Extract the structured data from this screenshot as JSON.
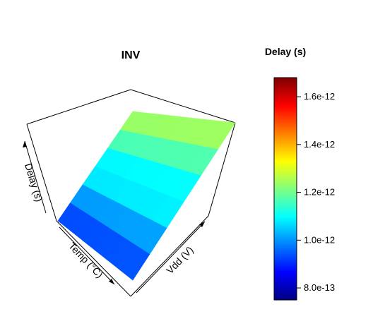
{
  "chart_data": {
    "type": "surface3d",
    "title": "INV",
    "xlabel": "Temp (°C)",
    "ylabel": "Vdd (V)",
    "zlabel": "Delay (s)",
    "zlim": [
      7.5e-13,
      1.68e-12
    ],
    "colorbar": {
      "title": "Delay (s)",
      "range": [
        7.5e-13,
        1.68e-12
      ],
      "ticks": [
        8e-13,
        1e-12,
        1.2e-12,
        1.4e-12,
        1.6e-12
      ],
      "tick_labels": [
        "8.0e-13",
        "1.0e-12",
        "1.2e-12",
        "1.4e-12",
        "1.6e-12"
      ],
      "palette": "jet"
    },
    "grid": {
      "temp_steps": 6,
      "vdd_steps": 6,
      "delay_min": 9e-13,
      "delay_max": 1.28e-12,
      "color_bands": 5
    },
    "colors": {
      "box": "#000000"
    }
  }
}
